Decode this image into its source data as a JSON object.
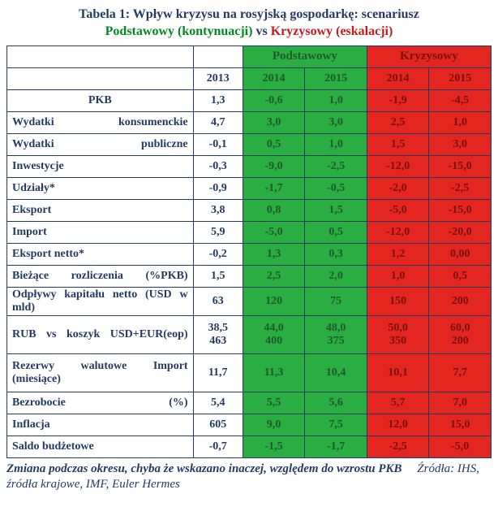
{
  "title_prefix": "Tabela 1: Wpływ kryzysu na rosyjską gospodarkę: scenariusz",
  "title_base": "Podstawowy (kontynuacji)",
  "title_vs": " vs ",
  "title_crisis": "Kryzysowy (eskalacji)",
  "colors": {
    "title_text": "#233a63",
    "base_green_bg": "#2aad41",
    "base_green_text": "#1f5a2f",
    "crisis_red_bg": "#e3261f",
    "crisis_red_text": "#7a0f0f",
    "border": "#233a63",
    "title_base": "#008a1f",
    "title_crisis": "#c71a1a"
  },
  "headers": {
    "base": "Podstawowy",
    "crisis": "Kryzysowy",
    "y2013": "2013",
    "y2014": "2014",
    "y2015": "2015"
  },
  "rows": [
    {
      "type": "pkb",
      "label": "PKB",
      "center": true,
      "v2013": "1,3",
      "b14": "-0,6",
      "b15": "1,0",
      "c14": "-1,9",
      "c15": "-4,5"
    },
    {
      "type": "sec",
      "label": "Wydatki konsumenckie",
      "justify": true,
      "v2013": "4,7",
      "b14": "3,0",
      "b15": "3,0",
      "c14": "2,5",
      "c15": "1,0"
    },
    {
      "label": "Wydatki publiczne",
      "justify": true,
      "v2013": "-0,1",
      "b14": "0,5",
      "b15": "1,0",
      "c14": "1,5",
      "c15": "3,0"
    },
    {
      "label": "Inwestycje",
      "v2013": "-0,3",
      "b14": "-9,0",
      "b15": "-2,5",
      "c14": "-12,0",
      "c15": "-15,0"
    },
    {
      "label": "Udziały*",
      "v2013": "-0,9",
      "b14": "-1,7",
      "b15": "-0,5",
      "c14": "-2,0",
      "c15": "-2,5"
    },
    {
      "label": "Eksport",
      "v2013": "3,8",
      "b14": "0,8",
      "b15": "1,5",
      "c14": "-5,0",
      "c15": "-15,0"
    },
    {
      "label": "Import",
      "v2013": "5,9",
      "b14": "-5,0",
      "b15": "0,5",
      "c14": "-12,0",
      "c15": "-20,0"
    },
    {
      "label": "Eksport netto*",
      "v2013": "-0,2",
      "b14": "1,3",
      "b15": "0,3",
      "c14": "1,2",
      "c15": "0,00"
    },
    {
      "type": "sec",
      "label": "Bieżące rozliczenia (%PKB)",
      "justify": true,
      "v2013": "1,5",
      "b14": "2,5",
      "b15": "2,0",
      "c14": "1,0",
      "c15": "0,5"
    },
    {
      "label": "Odpływy kapitału netto (USD w mld)",
      "justify": true,
      "v2013": "63",
      "b14": "120",
      "b15": "75",
      "c14": "150",
      "c15": "200"
    },
    {
      "label": "RUB vs koszyk USD+EUR(eop)",
      "justify": true,
      "twoLine": true,
      "v2013a": "38,5",
      "v2013b": "463",
      "b14a": "44,0",
      "b14b": "400",
      "b15a": "48,0",
      "b15b": "375",
      "c14a": "50,0",
      "c14b": "350",
      "c15a": "60,0",
      "c15b": "200"
    },
    {
      "label": "Rezerwy walutowe Import (miesiące)",
      "justify": true,
      "twoLine": true,
      "v2013a": "11,7",
      "v2013b": "",
      "b14a": "11,3",
      "b14b": "",
      "b15a": "10,4",
      "b15b": "",
      "c14a": "10,1",
      "c14b": "",
      "c15a": "7,7",
      "c15b": ""
    },
    {
      "type": "sec",
      "label": "Bezrobocie (%)",
      "justify": true,
      "v2013": "5,4",
      "b14": "5,5",
      "b15": "5,6",
      "c14": "5,7",
      "c15": "7,0"
    },
    {
      "label": "Inflacja",
      "v2013": "605",
      "b14": "9,0",
      "b15": "7,5",
      "c14": "12,0",
      "c15": "15,0"
    },
    {
      "label": "Saldo budżetowe",
      "v2013": "-0,7",
      "b14": "-1,5",
      "b15": "-1,7",
      "c14": "-2,5",
      "c15": "-5,0"
    }
  ],
  "footnote_main": "Zmiana podczas okresu, chyba że wskazano inaczej, względem do wzrostu PKB",
  "footnote_sources": "Źródła:  IHS, źródła krajowe, IMF, Euler Hermes"
}
